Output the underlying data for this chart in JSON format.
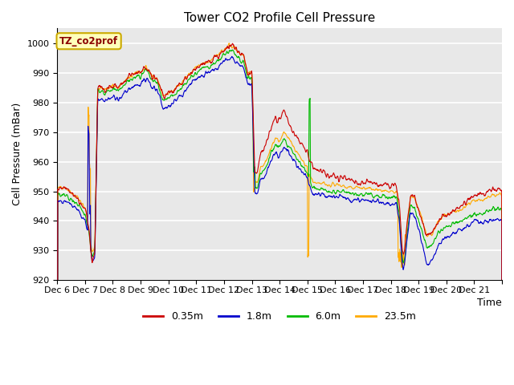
{
  "title": "Tower CO2 Profile Cell Pressure",
  "ylabel": "Cell Pressure (mBar)",
  "xlabel": "Time",
  "annotation": "TZ_co2prof",
  "ylim": [
    920,
    1005
  ],
  "yticks": [
    920,
    930,
    940,
    950,
    960,
    970,
    980,
    990,
    1000
  ],
  "xtick_labels": [
    "Dec 6",
    "Dec 7",
    "Dec 8",
    "Dec 9",
    "Dec 10",
    "Dec 11",
    "Dec 12",
    "Dec 13",
    "Dec 14",
    "Dec 15",
    "Dec 16",
    "Dec 17",
    "Dec 18",
    "Dec 19",
    "Dec 20",
    "Dec 21"
  ],
  "colors": {
    "0.35m": "#cc0000",
    "1.8m": "#0000cc",
    "6.0m": "#00bb00",
    "23.5m": "#ffaa00"
  },
  "bg_color": "#e8e8e8",
  "title_fontsize": 11,
  "axis_fontsize": 9,
  "tick_fontsize": 8
}
